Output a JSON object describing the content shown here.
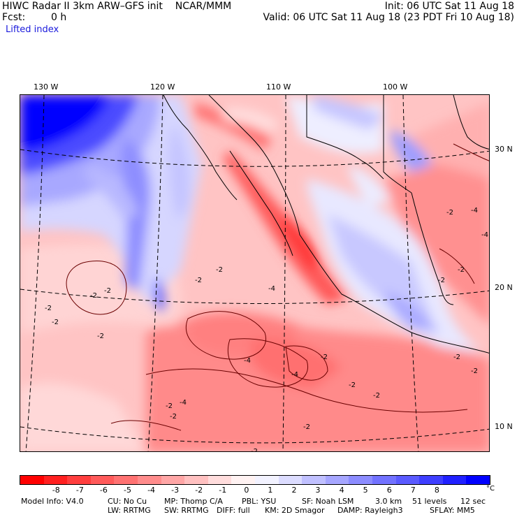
{
  "header": {
    "title": "HIWC Radar II 3km ARW–GFS init    NCAR/MMM",
    "fcst_label": "Fcst:",
    "fcst_value": "0 h",
    "init": "Init: 06 UTC Sat 11 Aug 18",
    "valid": "Valid: 06 UTC Sat 11 Aug 18 (23 PDT Fri 10 Aug 18)",
    "field": "Lifted index"
  },
  "map": {
    "lon_labels": [
      "130 W",
      "120 W",
      "110 W",
      "100 W"
    ],
    "lat_labels": [
      "30 N",
      "20 N",
      "10 N"
    ],
    "contour_labels": [
      "-2",
      "-4",
      "-2",
      "-2",
      "-4",
      "-2",
      "-2",
      "-4",
      "-2",
      "-2",
      "-2",
      "-2",
      "-2",
      "-2",
      "-2",
      "-4",
      "-4",
      "-2",
      "-4",
      "-2",
      "-2",
      "-2",
      "-2",
      "-2",
      "-2"
    ]
  },
  "colorbar": {
    "colors": [
      "#ff0000",
      "#ff2020",
      "#ff3e3e",
      "#ff5a5a",
      "#ff7272",
      "#ff8c8c",
      "#ffa6a6",
      "#ffc0c0",
      "#ffdcdc",
      "#fff2f2",
      "#f2f2ff",
      "#dcdcff",
      "#c0c0ff",
      "#a6a6ff",
      "#8c8cff",
      "#7272ff",
      "#5a5aff",
      "#3e3eff",
      "#2020ff",
      "#0000ff"
    ],
    "ticks": [
      "-8",
      "-7",
      "-6",
      "-5",
      "-4",
      "-3",
      "-2",
      "-1",
      "0",
      "1",
      "2",
      "3",
      "4",
      "5",
      "6",
      "7",
      "8"
    ],
    "unit": "°C"
  },
  "model_info": {
    "line1": [
      "Model Info: V4.0",
      "CU: No Cu",
      "MP: Thomp C/A",
      "PBL: YSU",
      "SF: Noah LSM",
      "3.0 km",
      "51 levels",
      "12 sec"
    ],
    "line2": [
      "LW: RRTMG",
      "SW: RRTMG",
      "DIFF: full",
      "KM: 2D Smagor",
      "DAMP: Rayleigh3",
      "SFLAY: MM5"
    ]
  }
}
